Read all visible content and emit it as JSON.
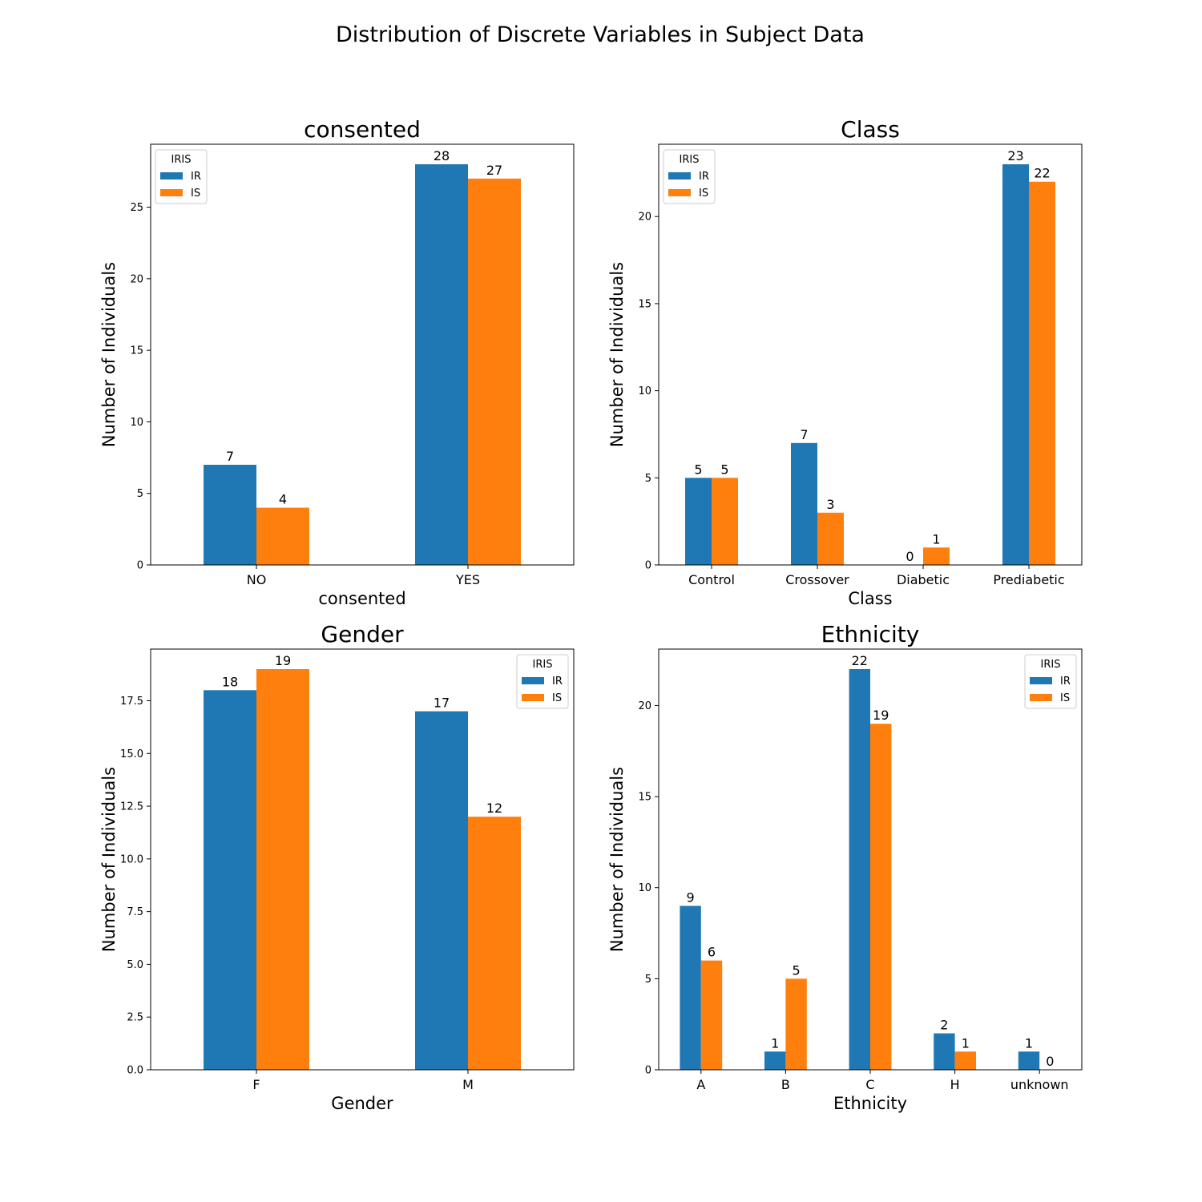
{
  "figure": {
    "title": "Distribution of Discrete Variables in Subject Data"
  },
  "chart_data": [
    {
      "type": "bar",
      "title": "consented",
      "xlabel": "consented",
      "ylabel": "Number of Individuals",
      "categories": [
        "NO",
        "YES"
      ],
      "series": [
        {
          "name": "IR",
          "values": [
            7,
            28
          ]
        },
        {
          "name": "IS",
          "values": [
            4,
            27
          ]
        }
      ],
      "ylim": [
        0,
        29.4
      ],
      "yticks": [
        0,
        5,
        10,
        15,
        20,
        25
      ],
      "ytick_labels": [
        "0",
        "5",
        "10",
        "15",
        "20",
        "25"
      ],
      "legend": {
        "title": "IRIS",
        "placement": "top-left"
      },
      "grid": false
    },
    {
      "type": "bar",
      "title": "Class",
      "xlabel": "Class",
      "ylabel": "Number of Individuals",
      "categories": [
        "Control",
        "Crossover",
        "Diabetic",
        "Prediabetic"
      ],
      "series": [
        {
          "name": "IR",
          "values": [
            5,
            7,
            0,
            23
          ]
        },
        {
          "name": "IS",
          "values": [
            5,
            3,
            1,
            22
          ]
        }
      ],
      "ylim": [
        0,
        24.15
      ],
      "yticks": [
        0,
        5,
        10,
        15,
        20
      ],
      "ytick_labels": [
        "0",
        "5",
        "10",
        "15",
        "20"
      ],
      "legend": {
        "title": "IRIS",
        "placement": "top-left"
      },
      "grid": false
    },
    {
      "type": "bar",
      "title": "Gender",
      "xlabel": "Gender",
      "ylabel": "Number of Individuals",
      "categories": [
        "F",
        "M"
      ],
      "series": [
        {
          "name": "IR",
          "values": [
            18,
            17
          ]
        },
        {
          "name": "IS",
          "values": [
            19,
            12
          ]
        }
      ],
      "ylim": [
        0,
        19.95
      ],
      "yticks": [
        0,
        2.5,
        5,
        7.5,
        10,
        12.5,
        15,
        17.5
      ],
      "ytick_labels": [
        "0.0",
        "2.5",
        "5.0",
        "7.5",
        "10.0",
        "12.5",
        "15.0",
        "17.5"
      ],
      "legend": {
        "title": "IRIS",
        "placement": "top-right"
      },
      "grid": false
    },
    {
      "type": "bar",
      "title": "Ethnicity",
      "xlabel": "Ethnicity",
      "ylabel": "Number of Individuals",
      "categories": [
        "A",
        "B",
        "C",
        "H",
        "unknown"
      ],
      "series": [
        {
          "name": "IR",
          "values": [
            9,
            1,
            22,
            2,
            1
          ]
        },
        {
          "name": "IS",
          "values": [
            6,
            5,
            19,
            1,
            0
          ]
        }
      ],
      "ylim": [
        0,
        23.1
      ],
      "yticks": [
        0,
        5,
        10,
        15,
        20
      ],
      "ytick_labels": [
        "0",
        "5",
        "10",
        "15",
        "20"
      ],
      "legend": {
        "title": "IRIS",
        "placement": "top-right"
      },
      "grid": false
    }
  ],
  "colors": {
    "IR": "#1f77b4",
    "IS": "#ff7f0e",
    "axis": "#000000",
    "background": "#ffffff"
  }
}
